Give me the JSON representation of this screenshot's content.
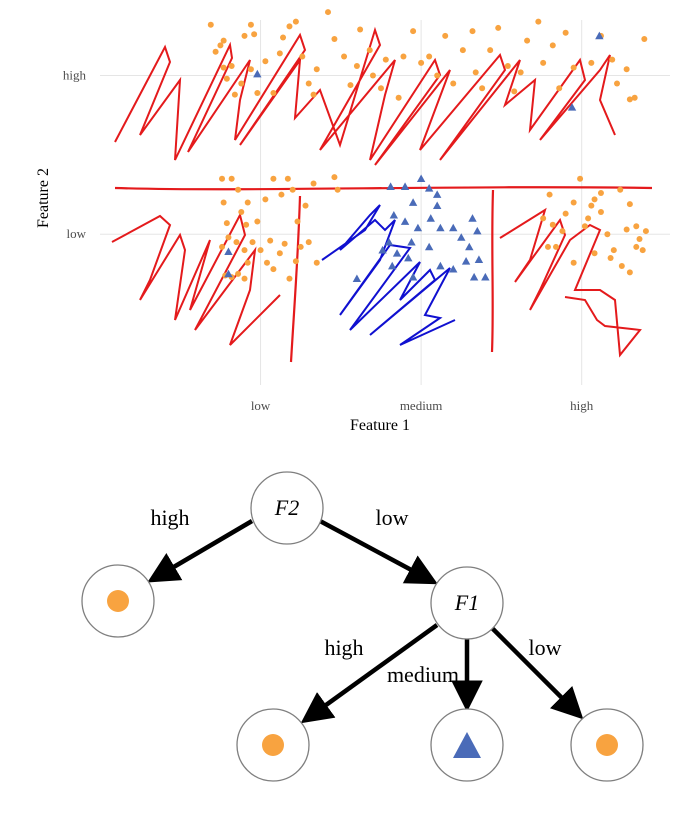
{
  "colors": {
    "orange": "#F8A340",
    "blue": "#4A6BB8",
    "red_scribble": "#E41A1C",
    "blue_scribble": "#1010D0",
    "grid": "#E5E5E5",
    "node_stroke": "#7F7F7F",
    "arrow": "#000000"
  },
  "chart_data": {
    "type": "scatter",
    "title": "",
    "xlabel": "Feature 1",
    "ylabel": "Feature 2",
    "x_categories": [
      "low",
      "medium",
      "high"
    ],
    "y_categories": [
      "low",
      "high"
    ],
    "grid": true,
    "x_range": [
      0.0,
      3.55
    ],
    "y_range": [
      0.05,
      2.35
    ],
    "series": [
      {
        "marker": "circle",
        "color": "#F8A340",
        "points": [
          [
            0.69,
            2.32
          ],
          [
            0.72,
            2.15
          ],
          [
            0.75,
            2.19
          ],
          [
            0.77,
            2.22
          ],
          [
            0.77,
            2.05
          ],
          [
            0.79,
            1.98
          ],
          [
            0.82,
            2.06
          ],
          [
            0.84,
            1.88
          ],
          [
            0.88,
            1.95
          ],
          [
            0.9,
            2.25
          ],
          [
            0.94,
            2.32
          ],
          [
            0.96,
            2.26
          ],
          [
            0.94,
            2.04
          ],
          [
            0.98,
            1.89
          ],
          [
            1.03,
            2.09
          ],
          [
            1.08,
            1.89
          ],
          [
            1.12,
            2.14
          ],
          [
            1.14,
            2.24
          ],
          [
            1.18,
            2.31
          ],
          [
            1.22,
            2.34
          ],
          [
            1.26,
            2.12
          ],
          [
            1.3,
            1.95
          ],
          [
            1.33,
            1.88
          ],
          [
            1.35,
            2.04
          ],
          [
            1.42,
            2.4
          ],
          [
            1.46,
            2.23
          ],
          [
            1.52,
            2.12
          ],
          [
            1.56,
            1.94
          ],
          [
            1.6,
            2.06
          ],
          [
            1.62,
            2.29
          ],
          [
            1.68,
            2.16
          ],
          [
            1.7,
            2.0
          ],
          [
            1.75,
            1.92
          ],
          [
            1.78,
            2.1
          ],
          [
            1.86,
            1.86
          ],
          [
            1.89,
            2.12
          ],
          [
            1.95,
            2.28
          ],
          [
            2.0,
            2.08
          ],
          [
            2.05,
            2.12
          ],
          [
            2.1,
            2.0
          ],
          [
            2.15,
            2.25
          ],
          [
            2.2,
            1.95
          ],
          [
            2.26,
            2.16
          ],
          [
            2.32,
            2.28
          ],
          [
            2.34,
            2.02
          ],
          [
            2.38,
            1.92
          ],
          [
            2.43,
            2.16
          ],
          [
            2.48,
            2.3
          ],
          [
            2.54,
            2.06
          ],
          [
            2.58,
            1.9
          ],
          [
            2.62,
            2.02
          ],
          [
            2.66,
            2.22
          ],
          [
            2.73,
            2.34
          ],
          [
            2.76,
            2.08
          ],
          [
            2.82,
            2.19
          ],
          [
            2.86,
            1.92
          ],
          [
            2.9,
            2.27
          ],
          [
            2.95,
            2.05
          ],
          [
            3.06,
            2.08
          ],
          [
            3.12,
            2.25
          ],
          [
            3.19,
            2.1
          ],
          [
            3.22,
            1.95
          ],
          [
            3.28,
            2.04
          ],
          [
            3.3,
            1.85
          ],
          [
            3.33,
            1.86
          ],
          [
            3.39,
            2.23
          ],
          [
            0.76,
            1.35
          ],
          [
            0.79,
            1.07
          ],
          [
            0.77,
            1.2
          ],
          [
            0.82,
            1.35
          ],
          [
            0.88,
            1.14
          ],
          [
            0.92,
            1.2
          ],
          [
            0.86,
            1.28
          ],
          [
            0.91,
            1.06
          ],
          [
            0.98,
            1.08
          ],
          [
            1.03,
            1.22
          ],
          [
            1.08,
            1.35
          ],
          [
            1.13,
            1.25
          ],
          [
            1.17,
            1.35
          ],
          [
            1.2,
            1.28
          ],
          [
            1.23,
            1.08
          ],
          [
            1.28,
            1.18
          ],
          [
            1.33,
            1.32
          ],
          [
            0.76,
            0.92
          ],
          [
            0.8,
            0.98
          ],
          [
            0.85,
            0.95
          ],
          [
            0.9,
            0.9
          ],
          [
            0.92,
            0.82
          ],
          [
            0.95,
            0.95
          ],
          [
            1.0,
            0.9
          ],
          [
            1.04,
            0.82
          ],
          [
            1.08,
            0.78
          ],
          [
            1.12,
            0.88
          ],
          [
            1.18,
            0.72
          ],
          [
            1.22,
            0.83
          ],
          [
            1.25,
            0.92
          ],
          [
            1.3,
            0.95
          ],
          [
            1.35,
            0.82
          ],
          [
            1.46,
            1.36
          ],
          [
            1.48,
            1.28
          ],
          [
            0.78,
            0.74
          ],
          [
            0.82,
            0.73
          ],
          [
            0.86,
            0.75
          ],
          [
            0.9,
            0.72
          ],
          [
            1.15,
            0.94
          ],
          [
            1.06,
            0.96
          ],
          [
            2.76,
            1.1
          ],
          [
            2.8,
            1.25
          ],
          [
            2.84,
            0.92
          ],
          [
            2.88,
            1.02
          ],
          [
            2.9,
            1.13
          ],
          [
            2.95,
            1.2
          ],
          [
            2.99,
            1.35
          ],
          [
            3.04,
            1.1
          ],
          [
            3.08,
            1.22
          ],
          [
            3.12,
            1.14
          ],
          [
            3.16,
            1.0
          ],
          [
            3.2,
            0.9
          ],
          [
            3.24,
            1.28
          ],
          [
            3.28,
            1.03
          ],
          [
            3.3,
            1.19
          ],
          [
            3.34,
            0.92
          ],
          [
            3.36,
            0.97
          ],
          [
            3.38,
            0.9
          ],
          [
            3.4,
            1.02
          ],
          [
            3.25,
            0.8
          ],
          [
            3.18,
            0.85
          ],
          [
            3.08,
            0.88
          ],
          [
            3.02,
            1.05
          ],
          [
            2.95,
            0.82
          ],
          [
            2.82,
            1.06
          ],
          [
            2.79,
            0.92
          ],
          [
            3.3,
            0.76
          ],
          [
            3.34,
            1.05
          ],
          [
            3.06,
            1.18
          ],
          [
            3.12,
            1.26
          ]
        ]
      },
      {
        "marker": "triangle",
        "color": "#4A6BB8",
        "points": [
          [
            0.8,
            0.89
          ],
          [
            0.8,
            0.75
          ],
          [
            0.98,
            2.01
          ],
          [
            3.11,
            2.25
          ],
          [
            2.94,
            1.8
          ],
          [
            1.81,
            1.3
          ],
          [
            1.9,
            1.3
          ],
          [
            2.0,
            1.35
          ],
          [
            2.05,
            1.29
          ],
          [
            2.1,
            1.25
          ],
          [
            1.95,
            1.2
          ],
          [
            2.1,
            1.18
          ],
          [
            1.83,
            1.12
          ],
          [
            1.9,
            1.08
          ],
          [
            1.98,
            1.04
          ],
          [
            2.06,
            1.1
          ],
          [
            2.12,
            1.04
          ],
          [
            2.2,
            1.04
          ],
          [
            2.25,
            0.98
          ],
          [
            2.32,
            1.1
          ],
          [
            2.35,
            1.02
          ],
          [
            2.3,
            0.92
          ],
          [
            2.28,
            0.83
          ],
          [
            2.36,
            0.84
          ],
          [
            2.33,
            0.73
          ],
          [
            2.4,
            0.73
          ],
          [
            2.12,
            0.8
          ],
          [
            1.94,
            0.95
          ],
          [
            1.8,
            0.95
          ],
          [
            1.76,
            0.9
          ],
          [
            1.85,
            0.88
          ],
          [
            1.92,
            0.85
          ],
          [
            1.82,
            0.8
          ],
          [
            1.6,
            0.72
          ],
          [
            1.95,
            0.73
          ],
          [
            2.2,
            0.78
          ],
          [
            2.05,
            0.92
          ]
        ]
      }
    ]
  },
  "tree": {
    "root": {
      "label": "F2"
    },
    "child": {
      "label": "F1"
    },
    "edges": [
      {
        "label": "high"
      },
      {
        "label": "low"
      },
      {
        "label": "high"
      },
      {
        "label": "medium"
      },
      {
        "label": "low"
      }
    ],
    "leaves": [
      {
        "class": "circle",
        "color": "#F8A340"
      },
      {
        "class": "circle",
        "color": "#F8A340"
      },
      {
        "class": "triangle",
        "color": "#4A6BB8"
      },
      {
        "class": "circle",
        "color": "#F8A340"
      }
    ]
  }
}
